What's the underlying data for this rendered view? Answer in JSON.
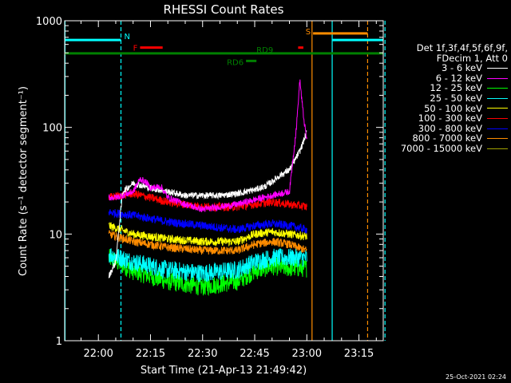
{
  "chart_data": {
    "type": "line",
    "title": "RHESSI Count Rates",
    "xlabel": "Start Time (21-Apr-13 21:49:42)",
    "ylabel": "Count Rate (s⁻¹ detector segment⁻¹)",
    "yscale": "log",
    "ylim": [
      1,
      1000
    ],
    "xlim_min": [
      -9.7,
      82
    ],
    "xtick_values": [
      0,
      15,
      30,
      45,
      60,
      75
    ],
    "xtick_labels": [
      "22:00",
      "22:15",
      "22:30",
      "22:45",
      "23:00",
      "23:15"
    ],
    "ytick_values": [
      1,
      10,
      100,
      1000
    ],
    "ytick_labels": [
      "1",
      "10",
      "100",
      "1000"
    ],
    "grid": false,
    "legend_position": "right",
    "legend_header": [
      "Det 1f,3f,4f,5f,6f,9f,",
      "FDecim 1, Att 0"
    ],
    "series": [
      {
        "name": "3 - 6 keV",
        "color": "#ffffff",
        "x": [
          3,
          5,
          7,
          10,
          15,
          20,
          25,
          30,
          35,
          40,
          45,
          48,
          50,
          52,
          55,
          58,
          60
        ],
        "y": [
          4,
          5.5,
          25,
          30,
          27,
          25,
          23,
          23,
          23,
          24,
          26,
          28,
          31,
          35,
          40,
          60,
          90
        ]
      },
      {
        "name": "6 - 12 keV",
        "color": "#ff00ff",
        "x": [
          3,
          5,
          7,
          10,
          12,
          14,
          15,
          18,
          20,
          25,
          30,
          35,
          40,
          45,
          50,
          55,
          57,
          58,
          59,
          60
        ],
        "y": [
          22,
          22,
          23,
          25,
          33,
          30,
          27,
          28,
          22,
          19,
          17,
          18,
          19,
          21,
          23,
          25,
          100,
          280,
          130,
          75
        ]
      },
      {
        "name": "12 - 25 keV",
        "color": "#00ff00",
        "x": [
          3,
          10,
          20,
          30,
          40,
          45,
          50,
          55,
          60
        ],
        "y": [
          6,
          4.5,
          3.6,
          3.2,
          3.6,
          4.5,
          5,
          4.8,
          4.8
        ]
      },
      {
        "name": "25 - 50 keV",
        "color": "#00ffff",
        "x": [
          3,
          10,
          20,
          30,
          40,
          45,
          50,
          55,
          60
        ],
        "y": [
          6.5,
          5.5,
          4.6,
          4.3,
          4.6,
          5.5,
          6,
          6,
          6
        ]
      },
      {
        "name": "50 - 100 keV",
        "color": "#ffff00",
        "x": [
          3,
          10,
          20,
          30,
          40,
          45,
          50,
          55,
          60
        ],
        "y": [
          12,
          10,
          9,
          8.5,
          8.5,
          10,
          10.5,
          10,
          9.5
        ]
      },
      {
        "name": "100 - 300 keV",
        "color": "#ff0000",
        "x": [
          3,
          10,
          20,
          30,
          40,
          45,
          50,
          55,
          60
        ],
        "y": [
          22,
          24,
          20,
          18,
          18,
          19,
          20,
          19,
          18
        ]
      },
      {
        "name": "300 - 800 keV",
        "color": "#0000ff",
        "x": [
          3,
          10,
          20,
          30,
          40,
          45,
          50,
          55,
          60
        ],
        "y": [
          16,
          15,
          13,
          12,
          11,
          12,
          12.5,
          12,
          11
        ]
      },
      {
        "name": "800 - 7000 keV",
        "color": "#ff8c00",
        "x": [
          3,
          10,
          20,
          30,
          40,
          45,
          50,
          55,
          60
        ],
        "y": [
          10,
          8.5,
          7.5,
          7,
          7,
          8,
          8.5,
          8,
          7
        ]
      },
      {
        "name": "7000 - 15000 keV",
        "color": "#a0a000",
        "x": [],
        "y": []
      }
    ],
    "vlines": [
      {
        "x": -9.6,
        "color": "#00ffff",
        "style": "solid"
      },
      {
        "x": 6.5,
        "color": "#00ffff",
        "style": "dashed"
      },
      {
        "x": 61.5,
        "color": "#ff8c00",
        "style": "solid"
      },
      {
        "x": 67.3,
        "color": "#00ffff",
        "style": "solid"
      },
      {
        "x": 77.5,
        "color": "#ff8c00",
        "style": "dashed"
      },
      {
        "x": 82.5,
        "color": "#00ffff",
        "style": "dashed"
      }
    ],
    "flag_bars": [
      {
        "label": "N",
        "color": "#00ffff",
        "x": [
          -9.7,
          6.5
        ],
        "y": 660
      },
      {
        "label": "S",
        "color": "#ff8c00",
        "x": [
          61.8,
          77.5
        ],
        "y": 760
      },
      {
        "label": "",
        "color": "#00ffff",
        "x": [
          67.3,
          82.5
        ],
        "y": 660
      },
      {
        "label": "F",
        "color": "#ff0000",
        "x": [
          12,
          18.5
        ],
        "y": 560
      },
      {
        "label": "",
        "color": "#ff0000",
        "x": [
          57.5,
          59
        ],
        "y": 560
      },
      {
        "label": "RD9",
        "color": "#008000",
        "x": [
          -9.7,
          82.5
        ],
        "y": 495
      },
      {
        "label": "RD6",
        "color": "#008000",
        "x": [
          42.5,
          45.5
        ],
        "y": 420
      }
    ]
  },
  "timestamp": "25-Oct-2021 02:24"
}
